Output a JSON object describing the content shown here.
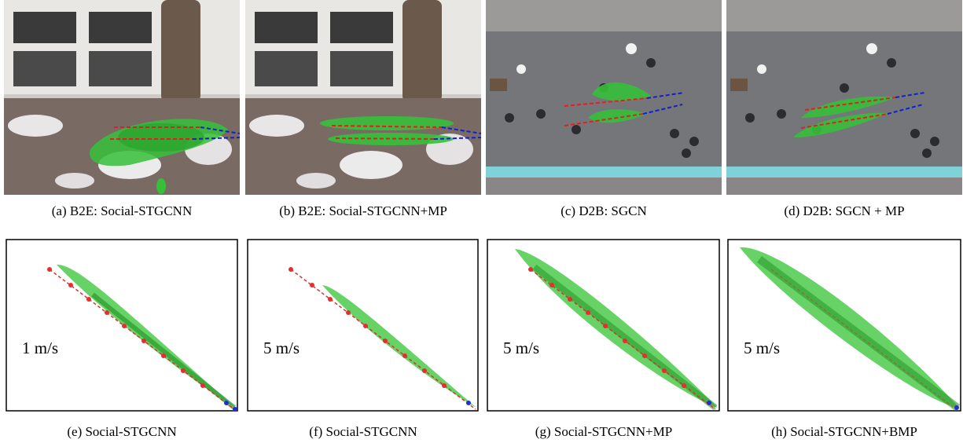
{
  "panels": [
    {
      "caption": "(a) B2E: Social-STGCNN"
    },
    {
      "caption": "(b) B2E: Social-STGCNN+MP"
    },
    {
      "caption": "(c) D2B: SGCN"
    },
    {
      "caption": "(d) D2B: SGCN + MP"
    },
    {
      "caption": "(e) Social-STGCNN",
      "speed_label": "1 m/s"
    },
    {
      "caption": "(f) Social-STGCNN",
      "speed_label": "5 m/s"
    },
    {
      "caption": "(g) Social-STGCNN+MP",
      "speed_label": "5 m/s"
    },
    {
      "caption": "(h) Social-STGCNN+BMP",
      "speed_label": "5 m/s"
    }
  ]
}
